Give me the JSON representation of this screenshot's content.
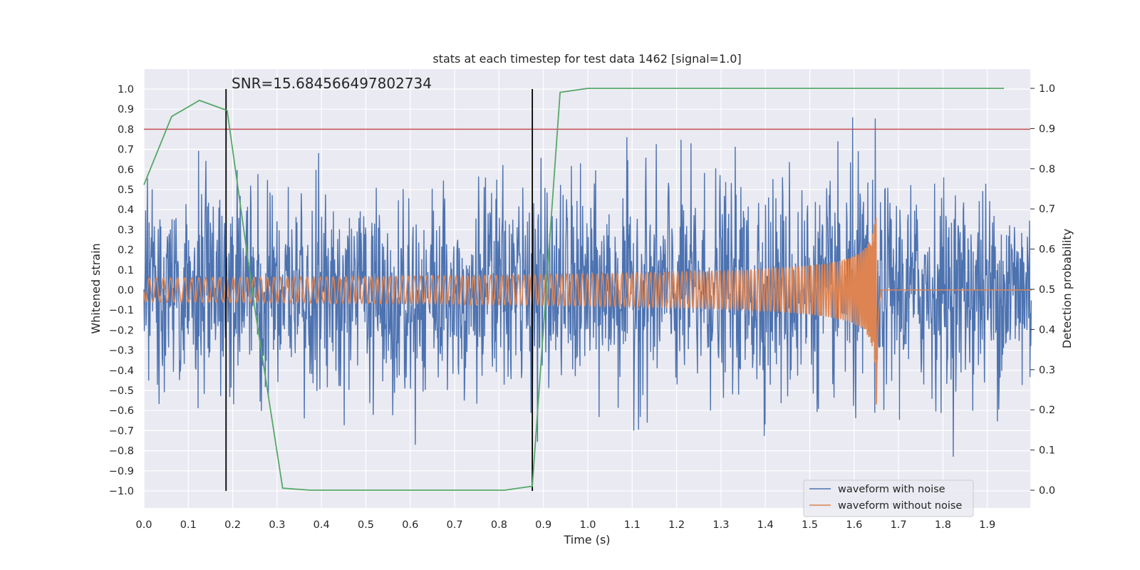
{
  "chart_data": {
    "type": "line",
    "title": "stats at each timestep for test data 1462 [signal=1.0]",
    "xlabel": "Time (s)",
    "ylabel": "Whitened strain",
    "ylabel_right": "Detection probability",
    "xlim": [
      0.0,
      2.0
    ],
    "ylim": [
      -1.1,
      1.1
    ],
    "ylim_right": [
      -0.05,
      1.05
    ],
    "x_ticks": [
      "0.0",
      "0.1",
      "0.2",
      "0.3",
      "0.4",
      "0.5",
      "0.6",
      "0.7",
      "0.8",
      "0.9",
      "1.0",
      "1.1",
      "1.2",
      "1.3",
      "1.4",
      "1.5",
      "1.6",
      "1.7",
      "1.8",
      "1.9"
    ],
    "y_ticks": [
      "1.0",
      "0.9",
      "0.8",
      "0.7",
      "0.6",
      "0.5",
      "0.4",
      "0.3",
      "0.2",
      "0.1",
      "0.0",
      "−0.1",
      "−0.2",
      "−0.3",
      "−0.4",
      "−0.5",
      "−0.6",
      "−0.7",
      "−0.8",
      "−0.9",
      "−1.0"
    ],
    "y_ticks_right": [
      "1.0",
      "0.9",
      "0.8",
      "0.7",
      "0.6",
      "0.5",
      "0.4",
      "0.3",
      "0.2",
      "0.1",
      "0.0"
    ],
    "annotation": "SNR=15.684566497802734",
    "threshold": 0.8,
    "vertical_lines": [
      0.185,
      0.875
    ],
    "detection_probability": {
      "x": [
        0.0,
        0.0625,
        0.125,
        0.1875,
        0.25,
        0.3125,
        0.375,
        0.4375,
        0.5,
        0.5625,
        0.625,
        0.6875,
        0.75,
        0.8125,
        0.875,
        0.9375,
        1.0,
        1.0625,
        1.125,
        1.1875,
        1.25,
        1.3125,
        1.375,
        1.4375,
        1.5,
        1.5625,
        1.625,
        1.6875,
        1.75,
        1.8125,
        1.875,
        1.9375
      ],
      "y": [
        0.76,
        0.93,
        0.97,
        0.945,
        0.45,
        0.005,
        0.0,
        0.0,
        0.0,
        0.0,
        0.0,
        0.0,
        0.0,
        0.0,
        0.01,
        0.99,
        1.0,
        1.0,
        1.0,
        1.0,
        1.0,
        1.0,
        1.0,
        1.0,
        1.0,
        1.0,
        1.0,
        1.0,
        1.0,
        1.0,
        1.0,
        1.0
      ]
    },
    "series": [
      {
        "name": "waveform with noise",
        "color": "#4c72b0",
        "kind": "noisy",
        "std": 0.25,
        "n": 2048
      },
      {
        "name": "waveform without noise",
        "color": "#dd8452",
        "kind": "chirp",
        "merger_time": 1.65,
        "amplitude_start": 0.06,
        "amplitude_peak": 0.45
      },
      {
        "name": "detection probability",
        "color": "#55a868",
        "kind": "probability"
      }
    ],
    "threshold_color": "#c44e52",
    "legend_position": "lower-right"
  }
}
